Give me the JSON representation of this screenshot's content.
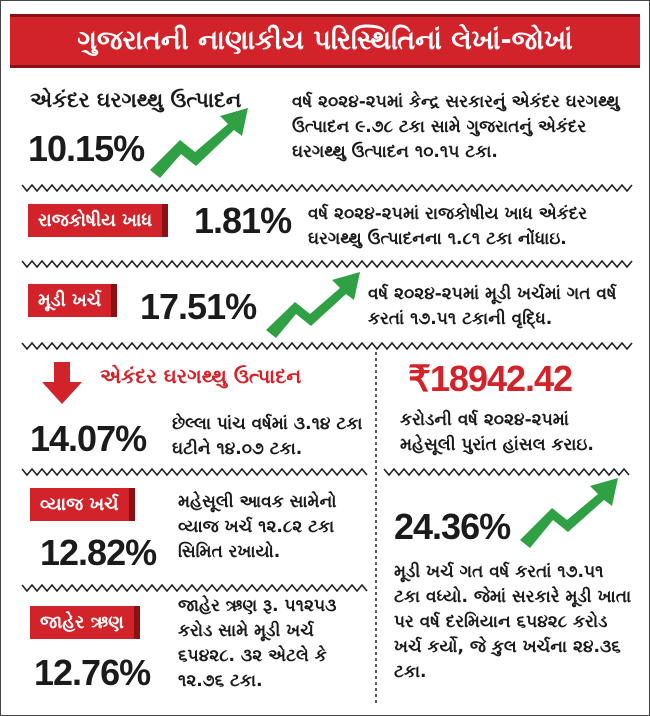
{
  "title": "ગુજરાતની નાણાકીય પરિસ્થિતિનાં લેખાં-જોખાં",
  "sections": [
    {
      "label": "એકંદર ઘરગથ્થુ ઉત્પાદન",
      "value": "10.15%",
      "text": "વર્ષ ૨૦૨૪-૨૫માં કેન્દ્ર સરકારનું એકંદર ઘરગથ્થુ ઉત્પાદન ૯.૭૮ ટકા સામે ગુજરાતનું એકંદર ઘરગથ્થુ ઉત્પાદન ૧૦.૧૫ ટકા."
    },
    {
      "label": "રાજકોષીય ખાધ",
      "value": "1.81%",
      "text": "વર્ષ ૨૦૨૪-૨૫માં રાજકોષીય ખાધ એકંદર ઘરગથ્થુ ઉત્પાદનના ૧.૮૧ ટકા નોંધાઇ."
    },
    {
      "label": "મૂડી ખર્ચ",
      "value": "17.51%",
      "text": "વર્ષ ૨૦૨૪-૨૫માં મૂડી ખર્ચમાં ગત વર્ષ કરતાં ૧૭.૫૧ ટકાની વૃદ્ધિ."
    },
    {
      "label": "એકંદર ઘરગથ્થુ ઉત્પાદન",
      "value": "14.07%",
      "text": "છેલ્લા પાંચ વર્ષમાં ૩.૧૪ ટકા ઘટીને ૧૪.૦૭ ટકા."
    },
    {
      "label": "વ્યાજ ખર્ચ",
      "value": "12.82%",
      "text": "મહેસૂલી આવક સામેનો વ્યાજ ખર્ચ ૧૨.૮૨ ટકા સિમિત રખાયો."
    },
    {
      "label": "જાહેર ઋણ",
      "value": "12.76%",
      "text": "જાહેર ઋણ રૂ. ૫૧૨૫૩ કરોડ સામે મૂડી ખર્ચ ૬૫૪૨૮. ૩૨ એટલે કે ૧૨.૭૬ ટકા."
    },
    {
      "value": "₹18942.42",
      "text": "કરોડની વર્ષ ૨૦૨૪-૨૫માં મહેસૂલી પુરાંત હાંસલ કરાઇ."
    },
    {
      "value": "24.36%",
      "text": "મૂડી ખર્ચ ગત વર્ષ કરતાં ૧૭.૫૧ ટકા વધ્યો. જેમાં સરકારે મૂડી ખાતા પર વર્ષ દરમિયાન ૬૫૪૨૮ કરોડ ખર્ચ કર્યો, જે કુલ ખર્ચના ૨૪.૩૬ ટકા."
    }
  ]
}
